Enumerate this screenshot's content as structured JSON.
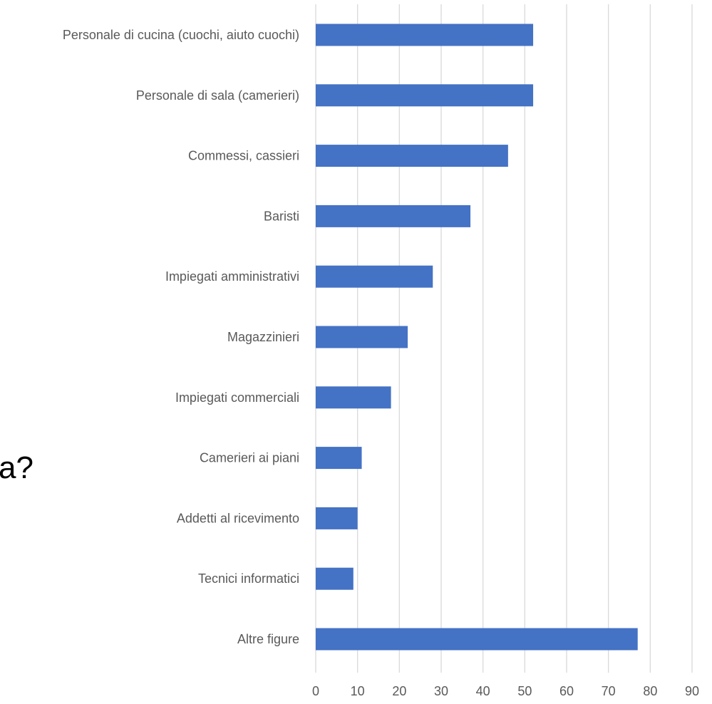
{
  "chart_data": {
    "type": "bar",
    "orientation": "horizontal",
    "categories": [
      "Personale di cucina (cuochi, aiuto cuochi)",
      "Personale di sala (camerieri)",
      "Commessi, cassieri",
      "Baristi",
      "Impiegati amministrativi",
      "Magazzinieri",
      "Impiegati commerciali",
      "Camerieri ai piani",
      "Addetti al ricevimento",
      "Tecnici informatici",
      "Altre figure"
    ],
    "values": [
      52,
      52,
      46,
      37,
      28,
      22,
      18,
      11,
      10,
      9,
      77
    ],
    "xlim": [
      0,
      90
    ],
    "x_ticks": [
      "0",
      "10",
      "20",
      "30",
      "40",
      "50",
      "60",
      "70",
      "80",
      "90"
    ],
    "grid": true,
    "bar_color": "#4472c4",
    "grid_color": "#d9d9d9",
    "text_color": "#595959"
  },
  "cut_off_text": "a?"
}
